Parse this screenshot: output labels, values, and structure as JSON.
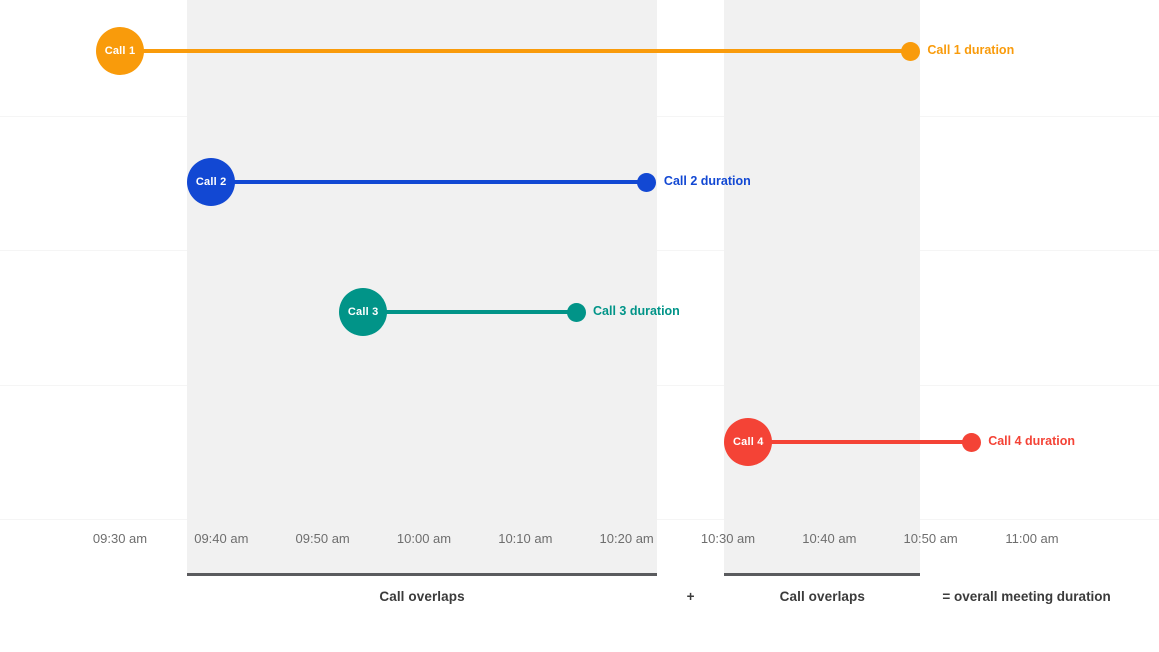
{
  "chart_data": {
    "type": "bar",
    "subtype": "timeline (gantt-style call durations with overlap bands)",
    "title": "",
    "xlabel": "",
    "ylabel": "",
    "x_axis": {
      "tick_labels": [
        "09:30 am",
        "09:40 am",
        "09:50 am",
        "10:00 am",
        "10:10 am",
        "10:20 am",
        "10:30 am",
        "10:40 am",
        "10:50 am",
        "11:00 am"
      ],
      "start": "09:30",
      "end": "11:00",
      "tick_interval_minutes": 10
    },
    "series": [
      {
        "name": "Call 1",
        "start": "09:30",
        "end": "10:48",
        "duration_label": "Call 1 duration",
        "color": "#F99B0B"
      },
      {
        "name": "Call 2",
        "start": "09:39",
        "end": "10:22",
        "duration_label": "Call 2 duration",
        "color": "#1248D3"
      },
      {
        "name": "Call 3",
        "start": "09:54",
        "end": "10:15",
        "duration_label": "Call 3 duration",
        "color": "#019488"
      },
      {
        "name": "Call 4",
        "start": "10:32",
        "end": "10:54",
        "duration_label": "Call 4 duration",
        "color": "#F44336"
      }
    ],
    "overlap_regions": [
      {
        "label": "Call overlaps",
        "start": "09:39",
        "end": "10:22"
      },
      {
        "label": "Call overlaps",
        "start": "10:32",
        "end": "10:48"
      }
    ],
    "annotations": {
      "plus": "+",
      "equals": "= overall meeting duration"
    },
    "legend": "none",
    "grid": "faint horizontal gridlines at row boundaries, no vertical gridlines"
  },
  "colors": {
    "background": "#FFFFFF",
    "region_bg": "#F1F1F1",
    "region_rule": "#5A5B5E",
    "gridline": "#F5F5F5",
    "tick_text": "#6E6E6E",
    "annotation_text": "#3B3B3B",
    "circle_text": "#FFFFFF"
  }
}
